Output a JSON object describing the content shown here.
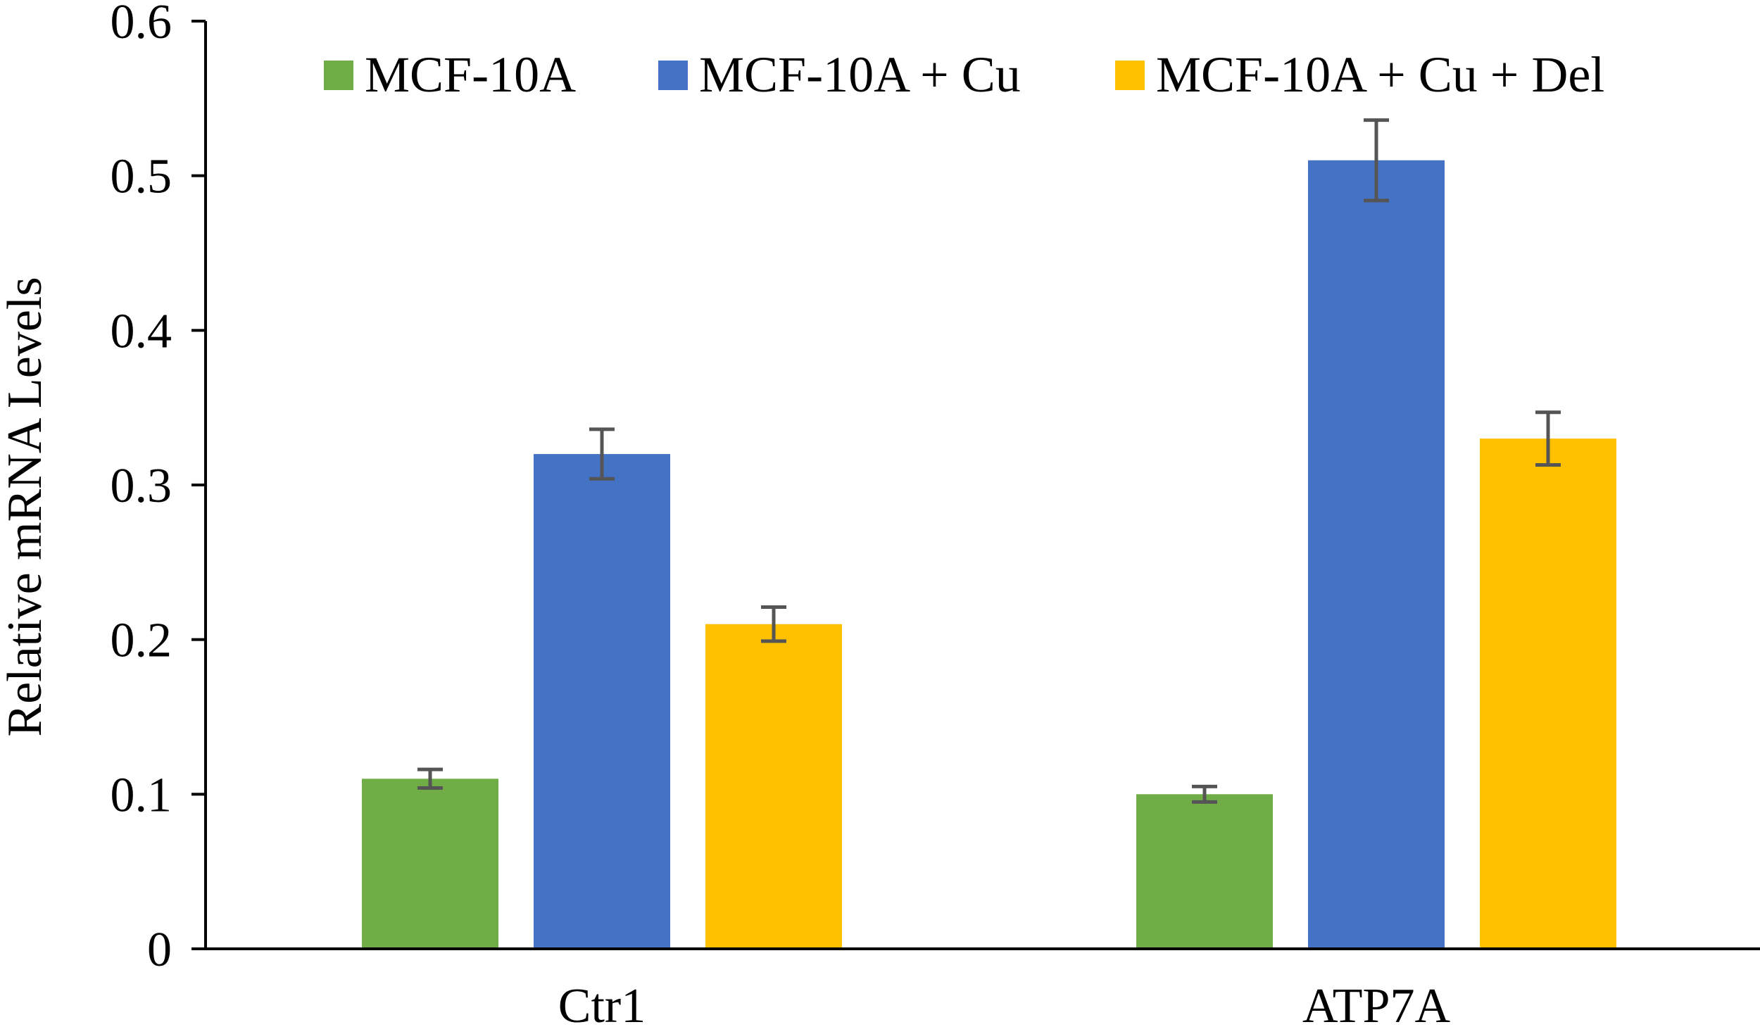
{
  "chart_data": {
    "type": "bar",
    "title": "",
    "xlabel": "",
    "ylabel": "Relative mRNA Levels",
    "ylim": [
      0,
      0.6
    ],
    "yticks": [
      0,
      0.1,
      0.2,
      0.3,
      0.4,
      0.5,
      0.6
    ],
    "ytick_labels": [
      "0",
      "0.1",
      "0.2",
      "0.3",
      "0.4",
      "0.5",
      "0.6"
    ],
    "categories": [
      "Ctr1",
      "ATP7A"
    ],
    "grid": false,
    "legend_position": "top",
    "series": [
      {
        "name": "MCF-10A",
        "color": "#70AD47",
        "values": [
          0.11,
          0.1
        ],
        "errors": [
          0.006,
          0.005
        ]
      },
      {
        "name": "MCF-10A + Cu",
        "color": "#4472C4",
        "values": [
          0.32,
          0.51
        ],
        "errors": [
          0.016,
          0.026
        ]
      },
      {
        "name": "MCF-10A + Cu + Del",
        "color": "#FFC000",
        "values": [
          0.21,
          0.33
        ],
        "errors": [
          0.011,
          0.017
        ]
      }
    ]
  }
}
